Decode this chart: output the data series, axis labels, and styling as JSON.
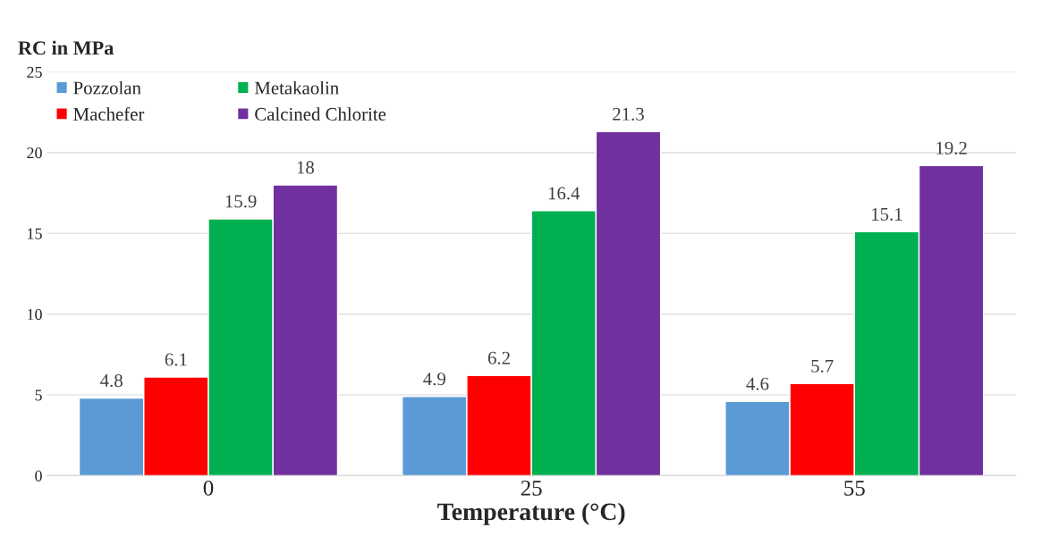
{
  "chart_data": {
    "type": "bar",
    "title": "RC in MPa",
    "xlabel": "Temperature (°C)",
    "categories": [
      "0",
      "25",
      "55"
    ],
    "series": [
      {
        "name": "Pozzolan",
        "color": "#5b9bd5",
        "values": [
          4.8,
          4.9,
          4.6
        ]
      },
      {
        "name": "Machefer",
        "color": "#ff0000",
        "values": [
          6.1,
          6.2,
          5.7
        ]
      },
      {
        "name": "Metakaolin",
        "color": "#00b050",
        "values": [
          15.9,
          16.4,
          15.1
        ]
      },
      {
        "name": "Calcined Chlorite",
        "color": "#7030a0",
        "values": [
          18,
          21.3,
          19.2
        ]
      }
    ],
    "ylim": [
      0,
      25
    ],
    "yticks": [
      0,
      5,
      10,
      15,
      20,
      25
    ],
    "grid": "y",
    "legend": "top left",
    "data_labels": true
  }
}
